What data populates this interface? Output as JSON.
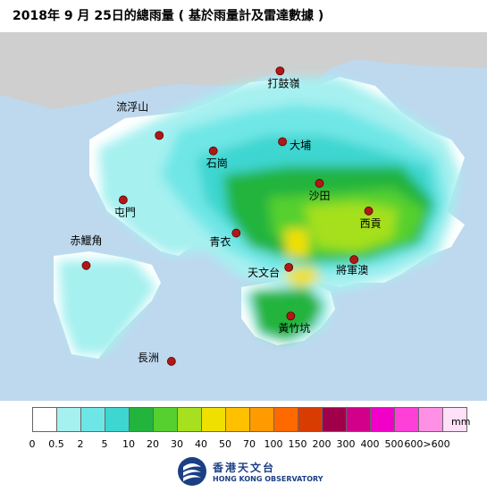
{
  "title": "2018年  9 月  25日的總雨量 ( 基於雨量計及雷達數據 )",
  "stations": [
    {
      "name": "打鼓嶺",
      "nx": 0.575,
      "ny": 0.105,
      "dx": -14,
      "dy": 14
    },
    {
      "name": "流浮山",
      "nx": 0.327,
      "ny": 0.28,
      "dx": -48,
      "dy": -32
    },
    {
      "name": "大埔",
      "nx": 0.58,
      "ny": 0.297,
      "dx": 8,
      "dy": 4
    },
    {
      "name": "石崗",
      "nx": 0.438,
      "ny": 0.322,
      "dx": -8,
      "dy": 14
    },
    {
      "name": "沙田",
      "nx": 0.656,
      "ny": 0.41,
      "dx": -12,
      "dy": 14
    },
    {
      "name": "屯門",
      "nx": 0.253,
      "ny": 0.455,
      "dx": -10,
      "dy": 14
    },
    {
      "name": "西貢",
      "nx": 0.757,
      "ny": 0.485,
      "dx": -10,
      "dy": 14
    },
    {
      "name": "青衣",
      "nx": 0.485,
      "ny": 0.545,
      "dx": -30,
      "dy": 10
    },
    {
      "name": "赤鱲角",
      "nx": 0.177,
      "ny": 0.633,
      "dx": -18,
      "dy": -28
    },
    {
      "name": "天文台",
      "nx": 0.593,
      "ny": 0.638,
      "dx": -46,
      "dy": 6
    },
    {
      "name": "將軍澳",
      "nx": 0.727,
      "ny": 0.617,
      "dx": -20,
      "dy": 12
    },
    {
      "name": "黃竹坑",
      "nx": 0.597,
      "ny": 0.77,
      "dx": -14,
      "dy": 14
    },
    {
      "name": "長洲",
      "nx": 0.352,
      "ny": 0.893,
      "dx": -38,
      "dy": -4
    }
  ],
  "legend": {
    "unit": "mm",
    "colors": [
      "#ffffff",
      "#a6f0f0",
      "#6fe6e6",
      "#3dd6d0",
      "#22b43c",
      "#55d02e",
      "#a6e01e",
      "#f0e000",
      "#ffc000",
      "#ff9a00",
      "#ff6a00",
      "#d83c00",
      "#a0004a",
      "#d0008a",
      "#f000c8",
      "#ff40d8",
      "#ff90e6",
      "#ffe0f8"
    ],
    "ticks": [
      "0",
      "0.5",
      "2",
      "5",
      "10",
      "20",
      "30",
      "40",
      "50",
      "70",
      "100",
      "150",
      "200",
      "300",
      "400",
      "500",
      "600>600"
    ]
  },
  "logo": {
    "cn": "香港天文台",
    "en": "HONG KONG OBSERVATORY"
  }
}
